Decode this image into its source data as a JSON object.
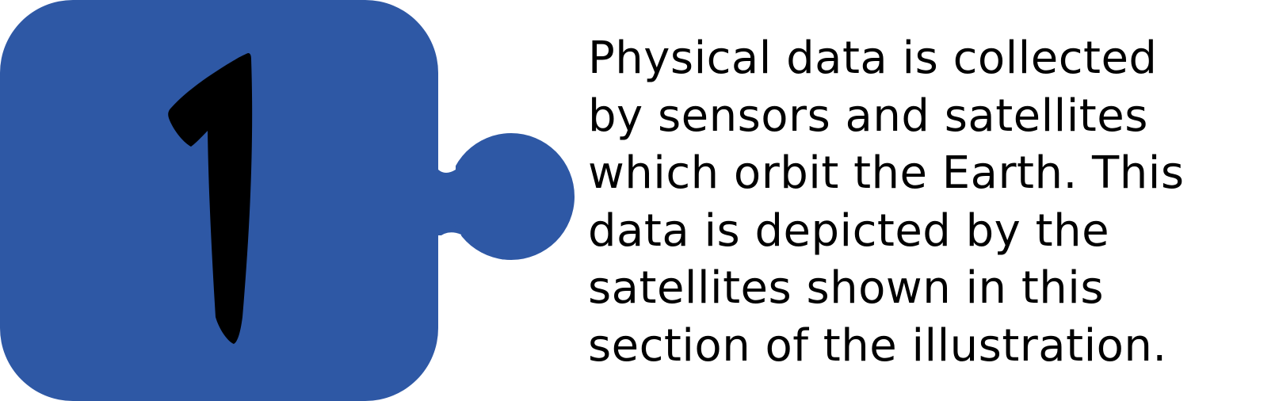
{
  "step": {
    "number": "1",
    "piece_color": "#2e58a5",
    "numeral_color": "#000000"
  },
  "caption": {
    "text": "Physical data is collected\nby sensors and satellites\nwhich orbit the Earth. This\ndata is depicted by the\nsatellites shown in this\nsection of the illustration."
  }
}
